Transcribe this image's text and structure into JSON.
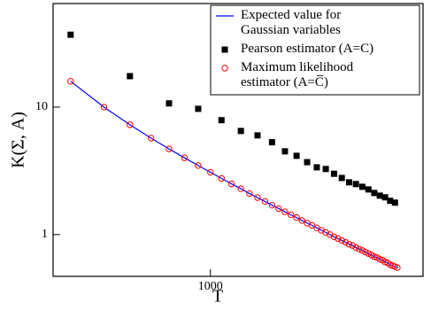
{
  "chart_data": {
    "type": "scatter",
    "xlabel": "T",
    "ylabel": "K(Σ, A)",
    "log_x": true,
    "log_y": true,
    "xlim": [
      258,
      6240
    ],
    "ylim": [
      0.47,
      65
    ],
    "xticks": [
      1000
    ],
    "yticks": [
      1,
      10
    ],
    "legend_position": "upper right",
    "series": [
      {
        "name": "Expected value for Gaussian variables",
        "color": "#0000ff",
        "marker": "line",
        "x": [
          300,
          400,
          500,
          600,
          700,
          800,
          900,
          1000,
          1100,
          1200,
          1300,
          1400,
          1500,
          1600,
          1700,
          1800,
          1900,
          2000,
          2100,
          2200,
          2300,
          2400,
          2500,
          2600,
          2700,
          2800,
          2900,
          3000,
          3100,
          3200,
          3300,
          3400,
          3500,
          3600,
          3700,
          3800,
          3900,
          4000,
          4100,
          4200,
          4300,
          4400,
          4500,
          4600,
          4700,
          4800,
          4900,
          5000
        ],
        "values": [
          15.97,
          9.99,
          7.27,
          5.71,
          4.7,
          4.0,
          3.48,
          3.08,
          2.76,
          2.5,
          2.29,
          2.1,
          1.95,
          1.82,
          1.7,
          1.6,
          1.51,
          1.43,
          1.36,
          1.29,
          1.23,
          1.18,
          1.13,
          1.08,
          1.04,
          1.0,
          0.96,
          0.93,
          0.9,
          0.87,
          0.84,
          0.82,
          0.79,
          0.77,
          0.75,
          0.73,
          0.71,
          0.69,
          0.67,
          0.66,
          0.64,
          0.63,
          0.61,
          0.6,
          0.58,
          0.57,
          0.56,
          0.55
        ]
      },
      {
        "name": "Pearson estimator (A=C)",
        "color": "#000000",
        "marker": "square",
        "x": [
          300,
          500,
          700,
          900,
          1100,
          1300,
          1500,
          1700,
          1900,
          2100,
          2300,
          2500,
          2700,
          2900,
          3100,
          3300,
          3500,
          3700,
          3900,
          4100,
          4300,
          4500,
          4700,
          4900
        ],
        "values": [
          37,
          17.5,
          10.7,
          9.7,
          7.9,
          6.5,
          6.0,
          5.3,
          4.5,
          4.15,
          3.7,
          3.37,
          3.27,
          3.0,
          2.78,
          2.57,
          2.49,
          2.37,
          2.26,
          2.12,
          2.02,
          1.96,
          1.84,
          1.78
        ]
      },
      {
        "name": "Maximum likelihood estimator (A=C̅)",
        "color": "#ff0000",
        "marker": "circle",
        "x": [
          300,
          400,
          500,
          600,
          700,
          800,
          900,
          1000,
          1100,
          1200,
          1300,
          1400,
          1500,
          1600,
          1700,
          1800,
          1900,
          2000,
          2100,
          2200,
          2300,
          2400,
          2500,
          2600,
          2700,
          2800,
          2900,
          3000,
          3100,
          3200,
          3300,
          3400,
          3500,
          3600,
          3700,
          3800,
          3900,
          4000,
          4100,
          4200,
          4300,
          4400,
          4500,
          4600,
          4700,
          4800,
          4900,
          5000
        ],
        "values": [
          15.97,
          9.99,
          7.27,
          5.71,
          4.7,
          4.0,
          3.48,
          3.08,
          2.76,
          2.5,
          2.29,
          2.1,
          1.95,
          1.82,
          1.7,
          1.6,
          1.51,
          1.43,
          1.36,
          1.29,
          1.23,
          1.18,
          1.13,
          1.08,
          1.04,
          1.0,
          0.96,
          0.93,
          0.9,
          0.87,
          0.84,
          0.82,
          0.79,
          0.77,
          0.75,
          0.73,
          0.71,
          0.69,
          0.67,
          0.66,
          0.64,
          0.63,
          0.61,
          0.6,
          0.58,
          0.57,
          0.56,
          0.55
        ]
      }
    ]
  }
}
